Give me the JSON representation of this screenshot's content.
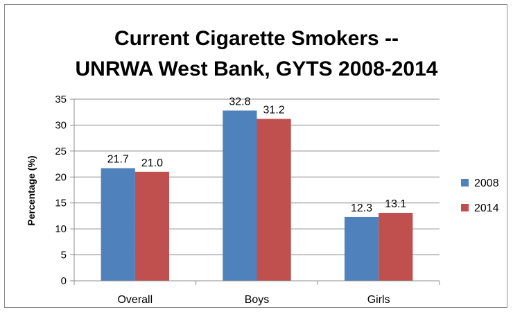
{
  "chart_data": {
    "type": "bar",
    "title_lines": [
      "Current Cigarette Smokers --",
      "UNRWA West Bank, GYTS 2008-2014"
    ],
    "xlabel": "",
    "ylabel": "Percentage (%)",
    "categories": [
      "Overall",
      "Boys",
      "Girls"
    ],
    "series": [
      {
        "name": "2008",
        "values": [
          21.7,
          32.8,
          12.3
        ],
        "labels": [
          "21.7",
          "32.8",
          "12.3"
        ],
        "color": "#4f81bd"
      },
      {
        "name": "2014",
        "values": [
          21.0,
          31.2,
          13.1
        ],
        "labels": [
          "21.0",
          "31.2",
          "13.1"
        ],
        "color": "#c0504d"
      }
    ],
    "ylim": [
      0,
      35
    ],
    "yticks": [
      0,
      5,
      10,
      15,
      20,
      25,
      30,
      35
    ],
    "grid": true,
    "legend_position": "right"
  }
}
